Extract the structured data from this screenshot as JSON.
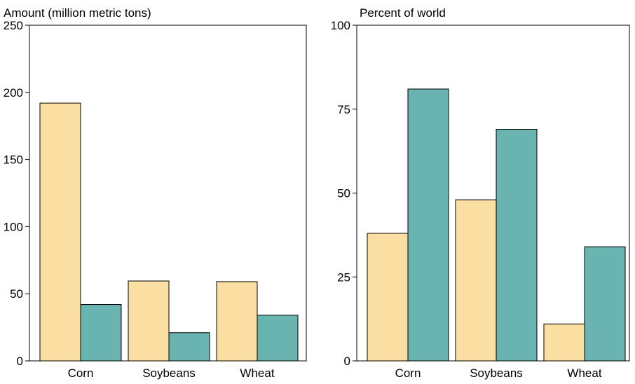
{
  "chart_data": [
    {
      "type": "bar",
      "title": "Amount (million metric tons)",
      "categories": [
        "Corn",
        "Soybeans",
        "Wheat"
      ],
      "series": [
        {
          "color": "#FBDFA2",
          "values": [
            192,
            59.5,
            59
          ]
        },
        {
          "color": "#69B3B1",
          "values": [
            42,
            21,
            34
          ]
        }
      ],
      "ylim": [
        0,
        250
      ],
      "yticks": [
        0,
        50,
        100,
        150,
        200,
        250
      ],
      "grid": false
    },
    {
      "type": "bar",
      "title": "Percent of world",
      "categories": [
        "Corn",
        "Soybeans",
        "Wheat"
      ],
      "series": [
        {
          "color": "#FBDFA2",
          "values": [
            38,
            48,
            11
          ]
        },
        {
          "color": "#69B3B1",
          "values": [
            81,
            69,
            34
          ]
        }
      ],
      "ylim": [
        0,
        100
      ],
      "yticks": [
        0,
        25,
        50,
        75,
        100
      ],
      "grid": false
    }
  ]
}
